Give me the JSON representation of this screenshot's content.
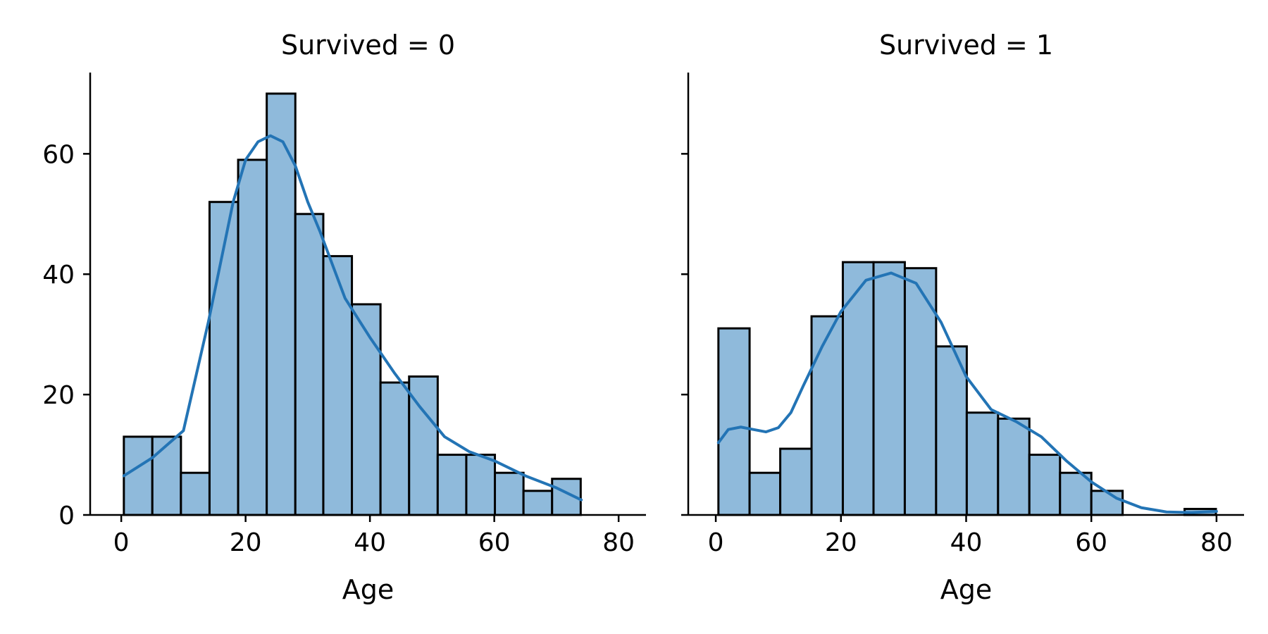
{
  "colors": {
    "bar_fill": "#8fbadb",
    "bar_edge": "#000000",
    "kde_line": "#2374b5",
    "axis": "#000000"
  },
  "chart_data": [
    {
      "type": "bar",
      "title": "Survived = 0",
      "xlabel": "Age",
      "ylabel": "",
      "xlim": [
        -5,
        84.4
      ],
      "ylim": [
        0,
        73.5
      ],
      "xticks": [
        "0",
        "20",
        "40",
        "60",
        "80"
      ],
      "yticks": [
        "0",
        "20",
        "40",
        "60"
      ],
      "bin_edges": [
        0.42,
        5.0,
        9.6,
        14.2,
        18.8,
        23.4,
        28.0,
        32.5,
        37.1,
        41.7,
        46.3,
        50.9,
        55.5,
        60.1,
        64.7,
        69.3,
        73.9
      ],
      "counts": [
        13,
        13,
        7,
        52,
        59,
        70,
        50,
        43,
        35,
        22,
        23,
        10,
        10,
        7,
        4,
        6
      ],
      "kde_x": [
        0.42,
        5,
        10,
        14,
        18,
        20,
        22,
        24,
        26,
        28,
        30,
        32,
        36,
        40,
        44,
        48,
        52,
        56,
        60,
        65,
        70,
        74
      ],
      "kde_y": [
        6.5,
        9.5,
        14,
        32,
        52,
        59,
        62,
        63,
        62,
        58,
        52,
        47,
        36,
        29.5,
        23.5,
        18,
        13,
        10.5,
        9,
        6.5,
        4.5,
        2.5
      ],
      "grid": false,
      "legend": "none"
    },
    {
      "type": "bar",
      "title": "Survived = 1",
      "xlabel": "Age",
      "ylabel": "",
      "xlim": [
        -4.4,
        84.4
      ],
      "ylim": [
        0,
        73.5
      ],
      "xticks": [
        "0",
        "20",
        "40",
        "60",
        "80"
      ],
      "yticks": [],
      "bin_edges": [
        0.42,
        5.4,
        10.3,
        15.3,
        20.3,
        25.2,
        30.2,
        35.2,
        40.1,
        45.1,
        50.1,
        55.0,
        60.0,
        65.0,
        70.0,
        74.9,
        79.9
      ],
      "counts": [
        31,
        7,
        11,
        33,
        42,
        42,
        41,
        28,
        17,
        16,
        10,
        7,
        4,
        0,
        0,
        1
      ],
      "kde_x": [
        0.42,
        2,
        4,
        6,
        8,
        10,
        12,
        14,
        17,
        20,
        24,
        28,
        32,
        36,
        40,
        44,
        48,
        52,
        56,
        60,
        64,
        68,
        72,
        76,
        80
      ],
      "kde_y": [
        12,
        14.2,
        14.6,
        14.2,
        13.8,
        14.5,
        17,
        21.5,
        28,
        33.8,
        39,
        40.2,
        38.5,
        32,
        23,
        17.5,
        15.5,
        13,
        9,
        5.5,
        2.8,
        1.2,
        0.5,
        0.4,
        0.6
      ],
      "grid": false,
      "legend": "none"
    }
  ]
}
